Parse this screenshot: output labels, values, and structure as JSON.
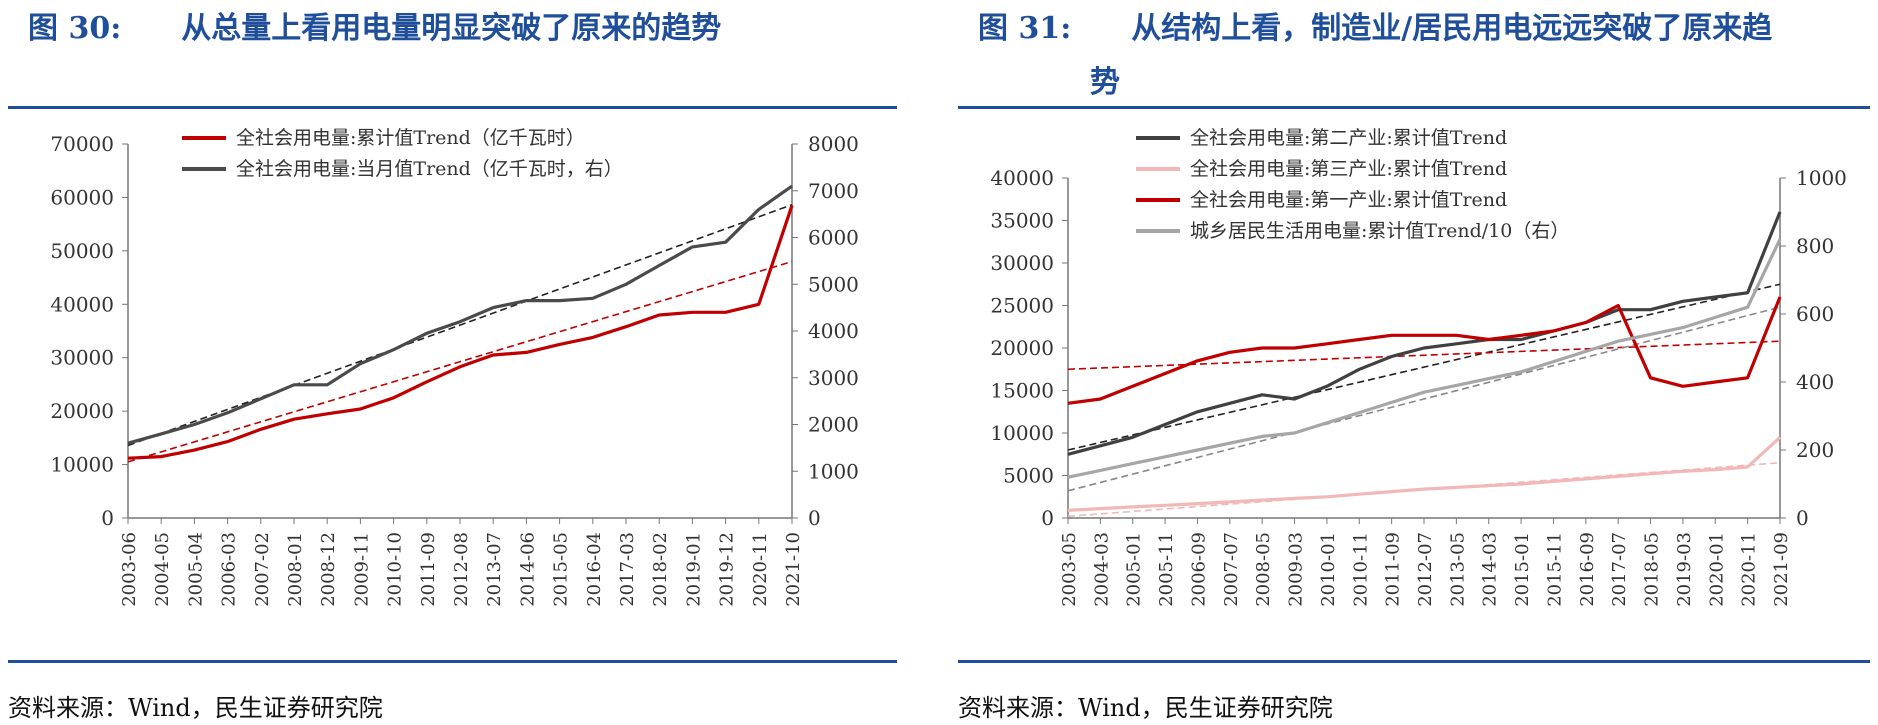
{
  "figures": [
    {
      "title_num": "图 30:",
      "title_text": "从总量上看用电量明显突破了原来的趋势",
      "title_cont": "",
      "source": "资料来源：Wind，民生证券研究院"
    },
    {
      "title_num": "图 31:",
      "title_text": "从结构上看，制造业/居民用电远远突破了原来趋",
      "title_cont": "势",
      "source": "资料来源：Wind，民生证券研究院"
    }
  ],
  "chart_data": [
    {
      "type": "line",
      "left_axis": {
        "ylim": [
          0,
          70000
        ],
        "ticks": [
          "0",
          "10000",
          "20000",
          "30000",
          "40000",
          "50000",
          "60000",
          "70000"
        ]
      },
      "right_axis": {
        "ylim": [
          0,
          8000
        ],
        "ticks": [
          "0",
          "1000",
          "2000",
          "3000",
          "4000",
          "5000",
          "6000",
          "7000",
          "8000"
        ]
      },
      "x_ticks": [
        "2003-06",
        "2004-05",
        "2005-04",
        "2006-03",
        "2007-02",
        "2008-01",
        "2008-12",
        "2009-11",
        "2010-10",
        "2011-09",
        "2012-08",
        "2013-07",
        "2014-06",
        "2015-05",
        "2016-04",
        "2017-03",
        "2018-02",
        "2019-01",
        "2019-12",
        "2020-11",
        "2021-10"
      ],
      "series": [
        {
          "name": "全社会用电量:累计值Trend（亿千瓦时）",
          "color": "#c00000",
          "axis": "left",
          "values": [
            11200,
            11500,
            12700,
            14300,
            16600,
            18500,
            19500,
            20400,
            22500,
            25500,
            28300,
            30500,
            31000,
            32500,
            33800,
            35800,
            38000,
            38500,
            38500,
            40000,
            58500
          ]
        },
        {
          "name": "全社会用电量:当月值Trend（亿千瓦时，右）",
          "color": "#4a4a4a",
          "axis": "right",
          "values": [
            1600,
            1800,
            2000,
            2250,
            2550,
            2850,
            2850,
            3300,
            3600,
            3950,
            4200,
            4500,
            4650,
            4650,
            4700,
            5000,
            5400,
            5800,
            5900,
            6600,
            7100
          ]
        }
      ],
      "trend_lines": [
        {
          "color": "#c00000",
          "axis": "left",
          "from": 10500,
          "to": 48000
        },
        {
          "color": "#222222",
          "axis": "right",
          "from": 1550,
          "to": 6700
        }
      ]
    },
    {
      "type": "line",
      "left_axis": {
        "ylim": [
          0,
          40000
        ],
        "ticks": [
          "0",
          "5000",
          "10000",
          "15000",
          "20000",
          "25000",
          "30000",
          "35000",
          "40000"
        ]
      },
      "right_axis": {
        "ylim": [
          0,
          1000
        ],
        "ticks": [
          "0",
          "200",
          "400",
          "600",
          "800",
          "1000"
        ]
      },
      "x_ticks": [
        "2003-05",
        "2004-03",
        "2005-01",
        "2005-11",
        "2006-09",
        "2007-07",
        "2008-05",
        "2009-03",
        "2010-01",
        "2010-11",
        "2011-09",
        "2012-07",
        "2013-05",
        "2014-03",
        "2015-01",
        "2015-11",
        "2016-09",
        "2017-07",
        "2018-05",
        "2019-03",
        "2020-01",
        "2020-11",
        "2021-09"
      ],
      "series": [
        {
          "name": "全社会用电量:第二产业:累计值Trend",
          "color": "#404040",
          "axis": "left",
          "values": [
            7500,
            8500,
            9500,
            11000,
            12500,
            13500,
            14500,
            14000,
            15500,
            17500,
            19000,
            20000,
            20500,
            21000,
            21000,
            22000,
            23000,
            24500,
            24500,
            25500,
            26000,
            26500,
            36000
          ]
        },
        {
          "name": "全社会用电量:第三产业:累计值Trend",
          "color": "#f2b8b8",
          "axis": "left",
          "values": [
            900,
            1100,
            1300,
            1500,
            1700,
            1900,
            2100,
            2300,
            2500,
            2800,
            3100,
            3400,
            3600,
            3800,
            4000,
            4300,
            4600,
            4900,
            5200,
            5500,
            5700,
            6000,
            9500
          ]
        },
        {
          "name": "全社会用电量:第一产业:累计值Trend",
          "color": "#c00000",
          "axis": "left",
          "values": [
            13500,
            14000,
            15500,
            17000,
            18500,
            19500,
            20000,
            20000,
            20500,
            21000,
            21500,
            21500,
            21500,
            21000,
            21500,
            22000,
            23000,
            25000,
            16500,
            15500,
            16000,
            16500,
            26000
          ]
        },
        {
          "name": "城乡居民生活用电量:累计值Trend/10（右）",
          "color": "#a6a6a6",
          "axis": "right",
          "values": [
            120,
            140,
            160,
            180,
            200,
            220,
            240,
            250,
            280,
            310,
            340,
            370,
            390,
            410,
            430,
            460,
            490,
            520,
            540,
            560,
            590,
            620,
            820
          ]
        }
      ],
      "trend_lines": [
        {
          "color": "#222222",
          "axis": "left",
          "from": 8000,
          "to": 27500
        },
        {
          "color": "#c00000",
          "axis": "left",
          "from": 17500,
          "to": 20800
        },
        {
          "color": "#f2b8b8",
          "axis": "left",
          "from": 200,
          "to": 6500
        },
        {
          "color": "#888888",
          "axis": "right",
          "from": 80,
          "to": 620
        }
      ]
    }
  ]
}
